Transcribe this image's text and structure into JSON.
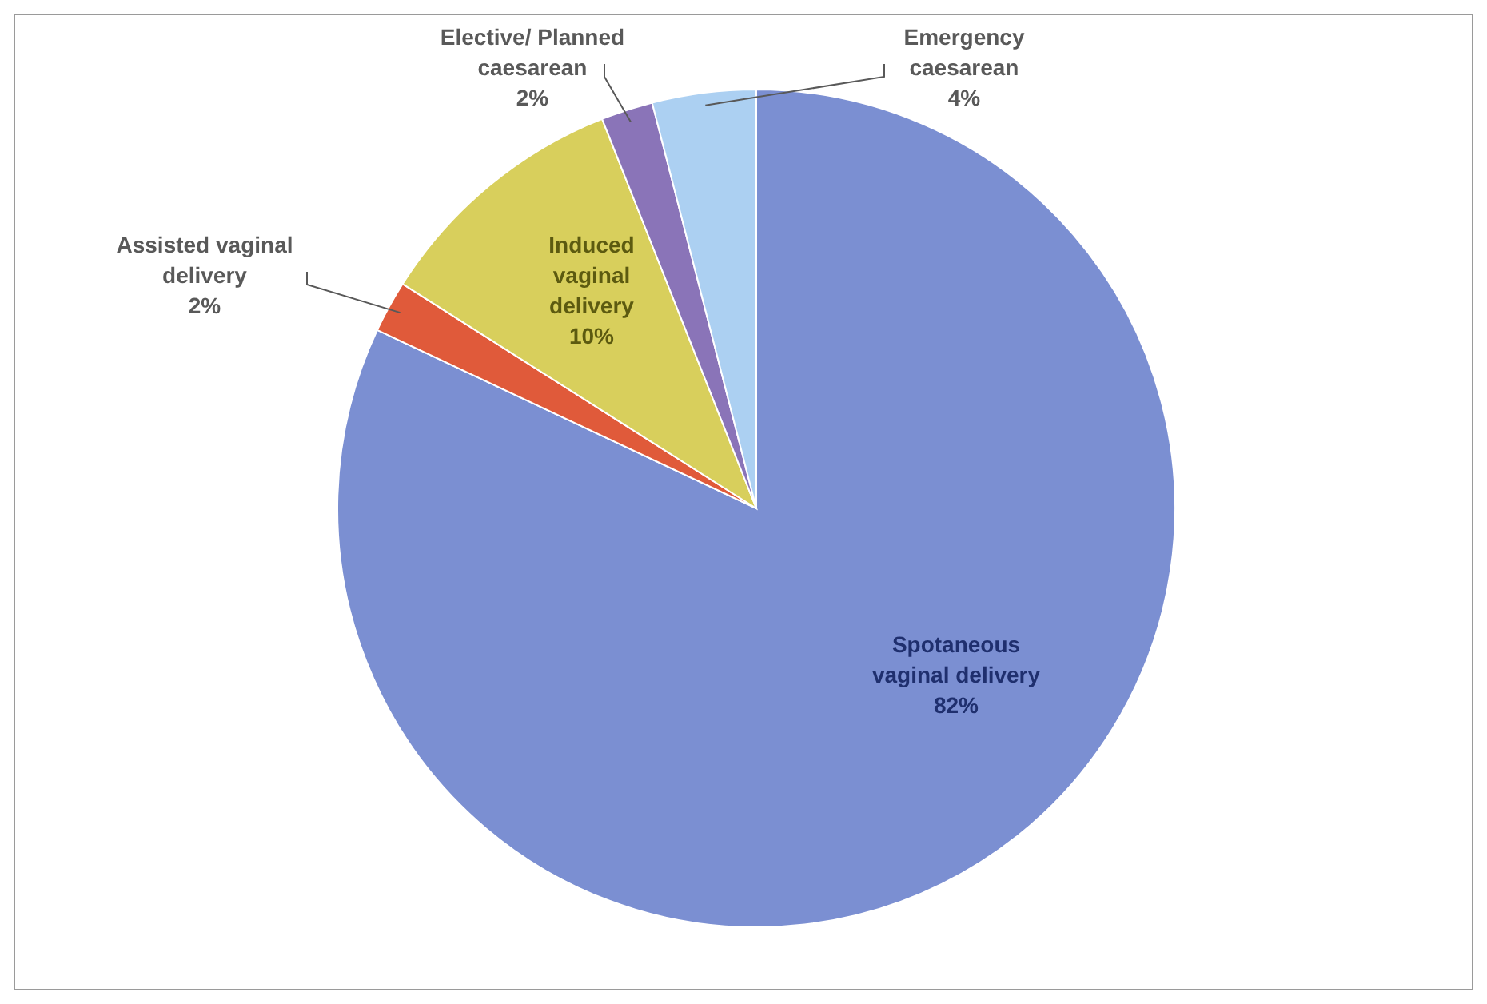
{
  "chart_data": {
    "type": "pie",
    "categories": [
      "Spotaneous vaginal delivery",
      "Assisted vaginal delivery",
      "Induced vaginal delivery",
      "Elective/ Planned caesarean",
      "Emergency caesarean"
    ],
    "values": [
      82,
      2,
      10,
      2,
      4
    ],
    "colors": [
      "#7b8fd2",
      "#e05a3a",
      "#d8cf5c",
      "#8a74b8",
      "#acd0f2"
    ],
    "value_labels": [
      "82%",
      "2%",
      "10%",
      "2%",
      "4%"
    ]
  }
}
